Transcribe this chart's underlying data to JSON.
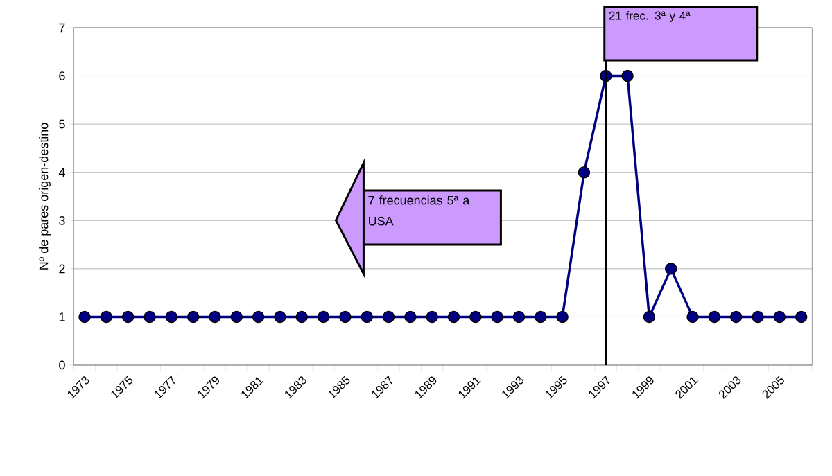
{
  "chart_data": {
    "type": "line",
    "ylabel": "Nº de pares origen-destino",
    "categories": [
      "1973",
      null,
      "1975",
      null,
      "1977",
      null,
      "1979",
      null,
      "1981",
      null,
      "1983",
      null,
      "1985",
      null,
      "1987",
      null,
      "1989",
      null,
      "1991",
      null,
      "1993",
      null,
      "1995",
      null,
      "1997",
      null,
      "1999",
      null,
      "2001",
      null,
      "2003",
      null,
      "2005",
      null
    ],
    "series": [
      {
        "color": "#000080",
        "values": [
          1,
          1,
          1,
          1,
          1,
          1,
          1,
          1,
          1,
          1,
          1,
          1,
          1,
          1,
          1,
          1,
          1,
          1,
          1,
          1,
          1,
          1,
          1,
          4,
          6,
          6,
          1,
          2,
          1,
          1,
          1,
          1,
          1,
          1
        ]
      }
    ],
    "ylim": [
      0,
      7
    ],
    "yticks": [
      0,
      1,
      2,
      3,
      4,
      5,
      6,
      7
    ],
    "grid": "y",
    "marker": "circle",
    "line_style": "solid",
    "ref_lines": [
      {
        "axis": "x",
        "value": "1997",
        "label": "21 frec. 3ª y 4ª",
        "color": "#000000"
      }
    ],
    "annotations": [
      "7 frecuencias 5ª a USA"
    ]
  }
}
